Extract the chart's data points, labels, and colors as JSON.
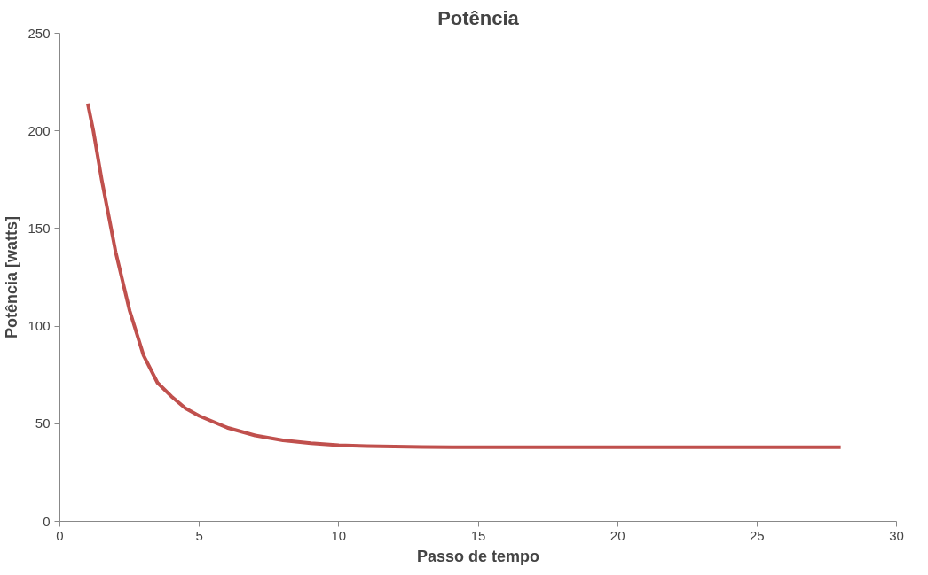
{
  "chart_data": {
    "type": "line",
    "title": "Potência",
    "xlabel": "Passo de tempo",
    "ylabel": "Potência [watts]",
    "series": [
      {
        "color": "#c0504d",
        "x": [
          1,
          1.2,
          1.5,
          2,
          2.5,
          3,
          3.5,
          4,
          4.5,
          5,
          6,
          7,
          8,
          9,
          10,
          11,
          12,
          13,
          15,
          20,
          25,
          28
        ],
        "values": [
          214,
          200,
          175,
          138,
          108,
          85,
          71,
          64,
          58,
          54,
          48,
          44,
          41.5,
          40,
          39,
          38.6,
          38.3,
          38.1,
          38,
          38,
          38,
          38
        ]
      }
    ],
    "xlim": [
      0,
      30
    ],
    "xticks": [
      0,
      5,
      10,
      15,
      20,
      25,
      30
    ],
    "ylim": [
      0,
      250
    ],
    "yticks": [
      0,
      50,
      100,
      150,
      200,
      250
    ],
    "grid": false,
    "marker": "none",
    "line_style": "solid"
  }
}
